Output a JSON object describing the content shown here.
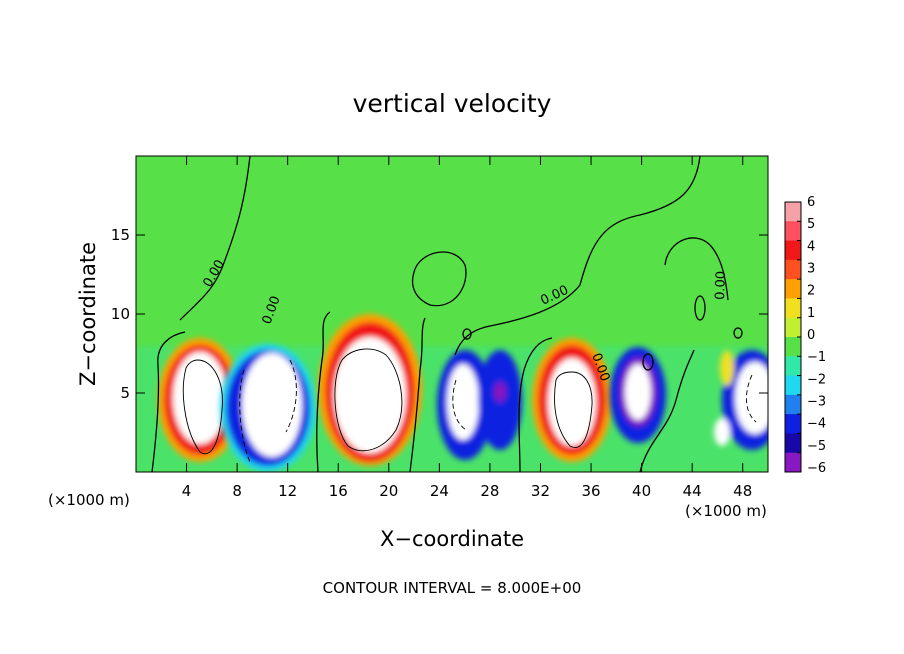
{
  "chart_data": {
    "type": "heatmap",
    "title": "vertical velocity",
    "xlabel": "X−coordinate",
    "ylabel": "Z−coordinate",
    "x_unit_label": "(×1000 m)",
    "y_unit_label": "(×1000 m)",
    "xlim": [
      0,
      50
    ],
    "ylim": [
      0,
      20
    ],
    "x_ticks": [
      4,
      8,
      12,
      16,
      20,
      24,
      28,
      32,
      36,
      40,
      44,
      48
    ],
    "y_ticks": [
      5,
      10,
      15
    ],
    "colorbar": {
      "labels": [
        "6",
        "5",
        "4",
        "3",
        "2",
        "1",
        "0",
        "−1",
        "−2",
        "−3",
        "−4",
        "−5",
        "−6"
      ],
      "colors": [
        "#f6a0a8",
        "#ff5060",
        "#f01818",
        "#ff5020",
        "#ffa000",
        "#f0e020",
        "#c0f030",
        "#58e048",
        "#30e8a8",
        "#20d8f0",
        "#2080f0",
        "#1020e0",
        "#1808a8",
        "#8818c0"
      ]
    },
    "contour_label": "0.00",
    "contour_interval_text": "CONTOUR INTERVAL = 8.000E+00",
    "features": [
      {
        "kind": "updraft",
        "x": 5.0,
        "z": 4.5,
        "peak": 6
      },
      {
        "kind": "downdraft",
        "x": 10.5,
        "z": 4.2,
        "peak": -6
      },
      {
        "kind": "updraft",
        "x": 18.0,
        "z": 4.8,
        "peak": 6
      },
      {
        "kind": "downdraft",
        "x": 26.0,
        "z": 4.0,
        "peak": -5
      },
      {
        "kind": "downdraft",
        "x": 29.5,
        "z": 4.0,
        "peak": -5
      },
      {
        "kind": "updraft",
        "x": 34.0,
        "z": 4.8,
        "peak": 6
      },
      {
        "kind": "downdraft",
        "x": 39.5,
        "z": 4.5,
        "peak": -6
      },
      {
        "kind": "downdraft",
        "x": 48.5,
        "z": 4.3,
        "peak": -6
      }
    ]
  }
}
